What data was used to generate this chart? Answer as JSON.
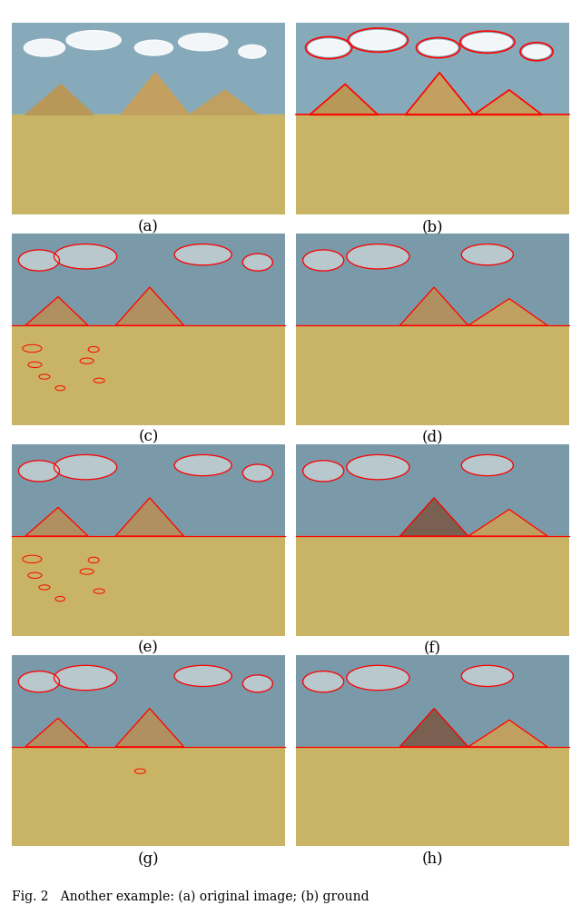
{
  "labels": [
    "(a)",
    "(b)",
    "(c)",
    "(d)",
    "(e)",
    "(f)",
    "(g)",
    "(h)"
  ],
  "caption": "Fig. 2   Another example: (a) original image; (b) ground",
  "nrows": 4,
  "ncols": 2,
  "figsize": [
    6.4,
    10.07
  ],
  "bg_color": "#ffffff",
  "label_fontsize": 12,
  "caption_fontsize": 10,
  "colors": {
    "sky_photo": "#87AABB",
    "sky_seg": "#7A9AAA",
    "sand": "#C8B464",
    "cloud_white": "#ffffff",
    "cloud_seg": "#B8C8CC",
    "pyramid_photo_center": "#C4A060",
    "pyramid_photo_left": "#B89858",
    "pyramid_photo_right": "#C0A060",
    "pyramid_seg_left": "#B09060",
    "pyramid_seg_center_dark": "#7A6050",
    "pyramid_seg_right": "#C0A060",
    "red": "#ff0000"
  }
}
